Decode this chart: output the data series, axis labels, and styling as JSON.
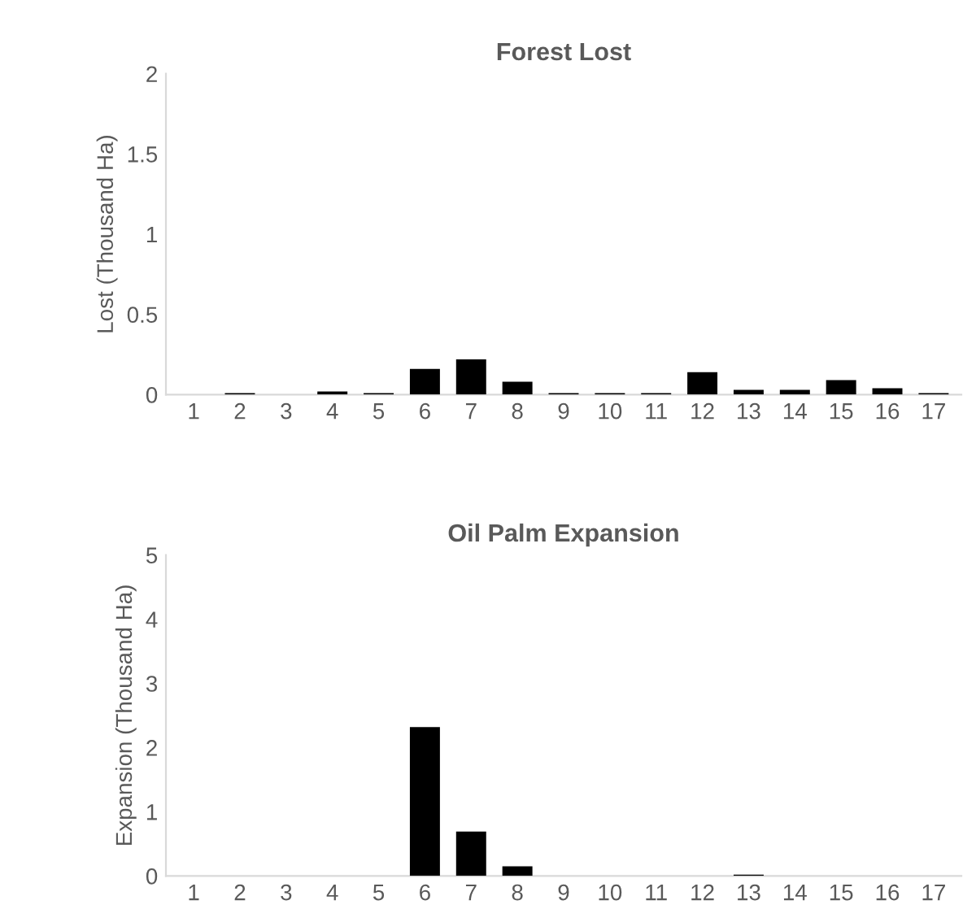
{
  "chart_data": [
    {
      "type": "bar",
      "title": "Forest Lost",
      "ylabel": "Lost (Thousand Ha)",
      "categories": [
        "1",
        "2",
        "3",
        "4",
        "5",
        "6",
        "7",
        "8",
        "9",
        "10",
        "11",
        "12",
        "13",
        "14",
        "15",
        "16",
        "17"
      ],
      "values": [
        0,
        0.01,
        0,
        0.02,
        0.01,
        0.16,
        0.22,
        0.08,
        0.01,
        0.01,
        0.01,
        0.14,
        0.03,
        0.03,
        0.09,
        0.04,
        0.01
      ],
      "color": "#000000",
      "ylim": [
        0,
        2
      ],
      "yticks": [
        0,
        0.5,
        1,
        1.5,
        2
      ],
      "grid": false,
      "legend": false
    },
    {
      "type": "bar",
      "title": "Oil Palm Expansion",
      "ylabel": "Expansion (Thousand Ha)",
      "categories": [
        "1",
        "2",
        "3",
        "4",
        "5",
        "6",
        "7",
        "8",
        "9",
        "10",
        "11",
        "12",
        "13",
        "14",
        "15",
        "16",
        "17"
      ],
      "values": [
        0,
        0,
        0,
        0,
        0,
        2.32,
        0.69,
        0.15,
        0,
        0,
        0,
        0,
        0.02,
        0,
        0,
        0,
        0
      ],
      "color": "#000000",
      "ylim": [
        0,
        5
      ],
      "yticks": [
        0,
        1,
        2,
        3,
        4,
        5
      ],
      "grid": false,
      "legend": false
    }
  ]
}
